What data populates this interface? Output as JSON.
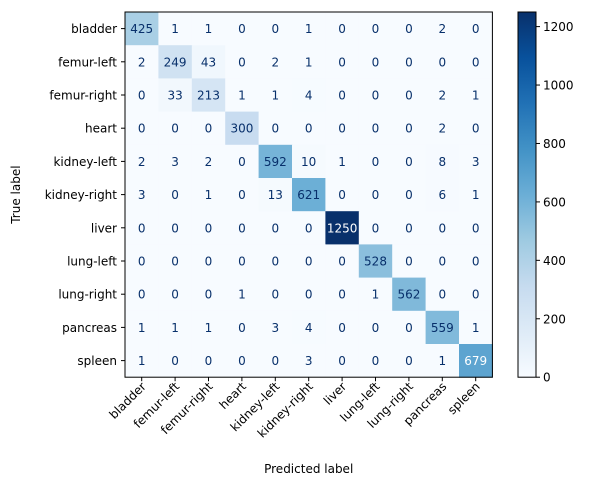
{
  "chart_data": {
    "type": "heatmap",
    "title": "",
    "xlabel": "Predicted label",
    "ylabel": "True label",
    "x_categories": [
      "bladder",
      "femur-left",
      "femur-right",
      "heart",
      "kidney-left",
      "kidney-right",
      "liver",
      "lung-left",
      "lung-right",
      "pancreas",
      "spleen"
    ],
    "y_categories": [
      "bladder",
      "femur-left",
      "femur-right",
      "heart",
      "kidney-left",
      "kidney-right",
      "liver",
      "lung-left",
      "lung-right",
      "pancreas",
      "spleen"
    ],
    "values": [
      [
        425,
        1,
        1,
        0,
        0,
        1,
        0,
        0,
        0,
        2,
        0
      ],
      [
        2,
        249,
        43,
        0,
        2,
        1,
        0,
        0,
        0,
        0,
        0
      ],
      [
        0,
        33,
        213,
        1,
        1,
        4,
        0,
        0,
        0,
        2,
        1
      ],
      [
        0,
        0,
        0,
        300,
        0,
        0,
        0,
        0,
        0,
        2,
        0
      ],
      [
        2,
        3,
        2,
        0,
        592,
        10,
        1,
        0,
        0,
        8,
        3
      ],
      [
        3,
        0,
        1,
        0,
        13,
        621,
        0,
        0,
        0,
        6,
        1
      ],
      [
        0,
        0,
        0,
        0,
        0,
        0,
        1250,
        0,
        0,
        0,
        0
      ],
      [
        0,
        0,
        0,
        0,
        0,
        0,
        0,
        528,
        0,
        0,
        0
      ],
      [
        0,
        0,
        0,
        1,
        0,
        0,
        0,
        1,
        562,
        0,
        0
      ],
      [
        1,
        1,
        1,
        0,
        3,
        4,
        0,
        0,
        0,
        559,
        1
      ],
      [
        1,
        0,
        0,
        0,
        0,
        3,
        0,
        0,
        0,
        1,
        679
      ]
    ],
    "colormap": "Blues",
    "color_range": [
      0,
      1250
    ],
    "colorbar_ticks": [
      0,
      200,
      400,
      600,
      800,
      1000,
      1200
    ],
    "grid": false,
    "colorbar_placement": "right"
  }
}
